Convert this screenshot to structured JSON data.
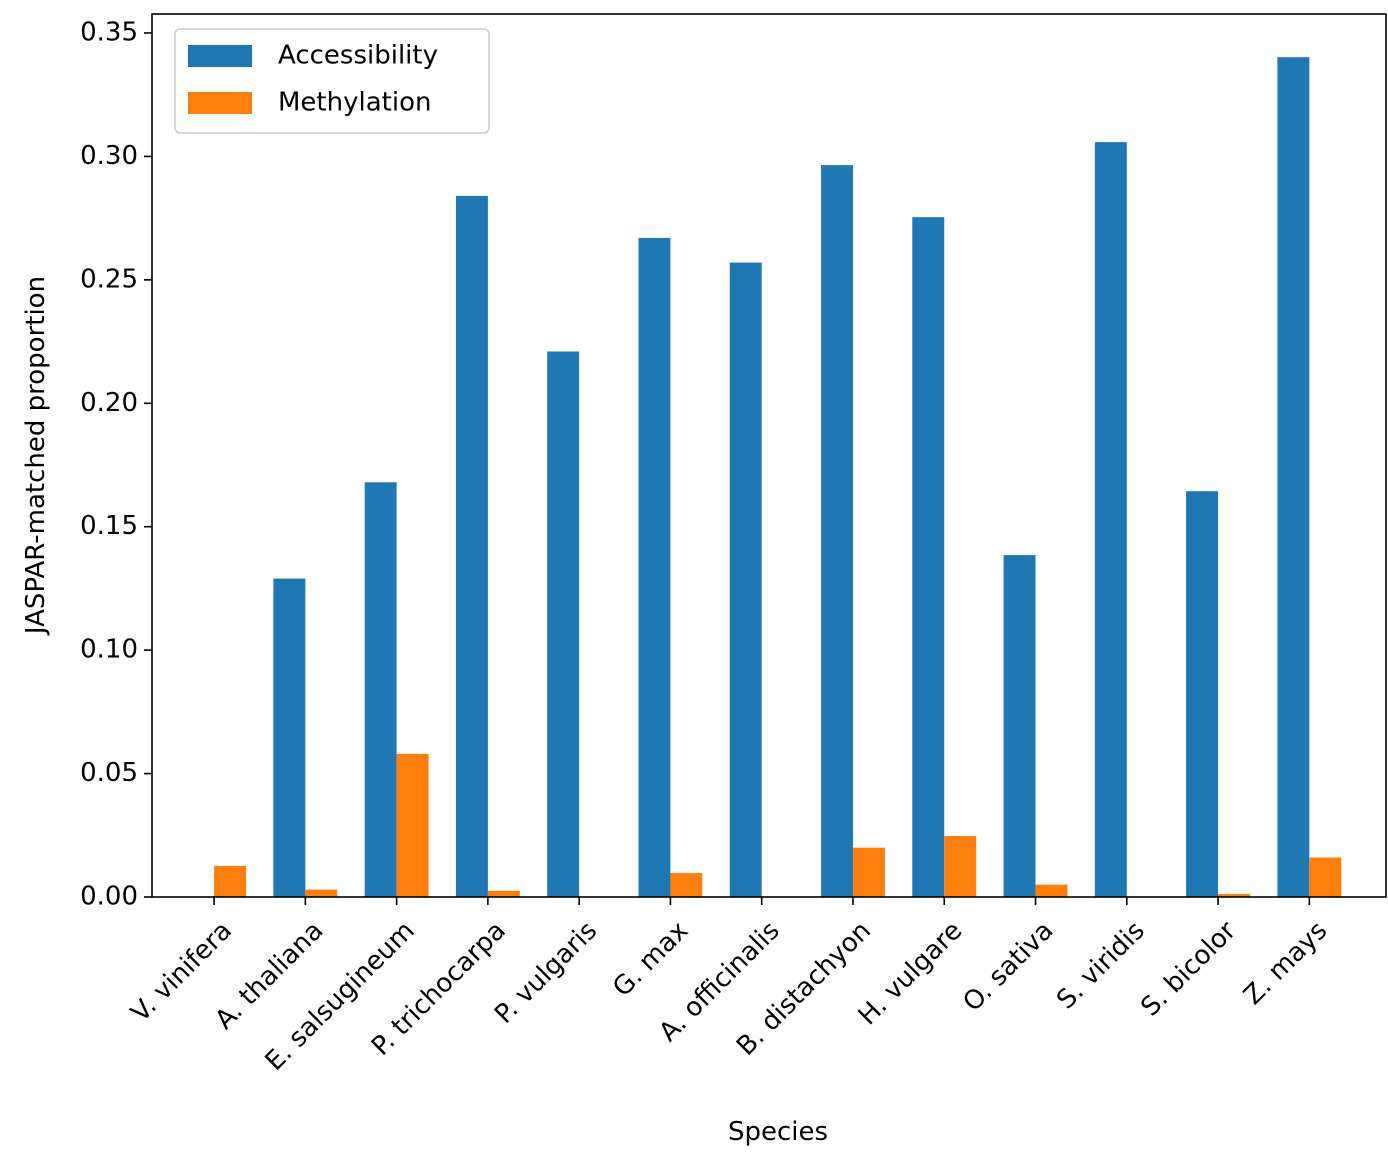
{
  "chart_data": {
    "type": "bar",
    "x_label": "Species",
    "y_label": "JASPAR-matched proportion",
    "categories": [
      "V. vinifera",
      "A. thaliana",
      "E. salsugineum",
      "P. trichocarpa",
      "P. vulgaris",
      "G. max",
      "A. officinalis",
      "B. distachyon",
      "H. vulgare",
      "O. sativa",
      "S. viridis",
      "S. bicolor",
      "Z. mays"
    ],
    "series": [
      {
        "name": "Accessibility",
        "color": "#1f77b4",
        "values": [
          0,
          0.129,
          0.168,
          0.284,
          0.221,
          0.267,
          0.257,
          0.2965,
          0.2754,
          0.1385,
          0.3058,
          0.1644,
          0.3402
        ]
      },
      {
        "name": "Methylation",
        "color": "#ff7f0e",
        "values": [
          0.0126,
          0.003,
          0.058,
          0.0025,
          0,
          0.0097,
          0,
          0.02,
          0.0247,
          0.005,
          0,
          0.0012,
          0.016
        ]
      }
    ],
    "ylim": [
      0,
      0.3577
    ],
    "yticks": [
      {
        "value": 0,
        "label": "0.00"
      },
      {
        "value": 0.05,
        "label": "0.05"
      },
      {
        "value": 0.1,
        "label": "0.10"
      },
      {
        "value": 0.15,
        "label": "0.15"
      },
      {
        "value": 0.2,
        "label": "0.20"
      },
      {
        "value": 0.25,
        "label": "0.25"
      },
      {
        "value": 0.3,
        "label": "0.30"
      },
      {
        "value": 0.35,
        "label": "0.35"
      }
    ],
    "grid": false,
    "legend": "upper-left"
  }
}
